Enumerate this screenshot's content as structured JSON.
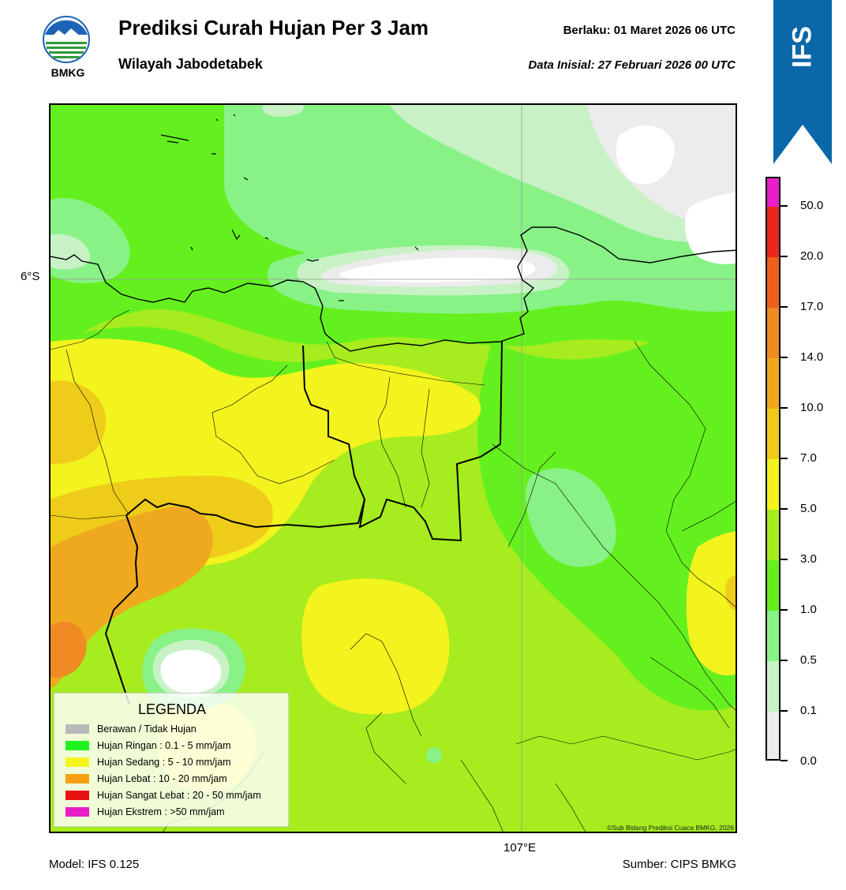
{
  "header": {
    "title": "Prediksi Curah Hujan Per 3 Jam",
    "subtitle": "Wilayah Jabodetabek",
    "valid": "Berlaku:  01 Maret 2026 06 UTC",
    "initial": "Data Inisial:  27 Februari 2026 00 UTC",
    "logo_text": "BMKG"
  },
  "badge": {
    "text": "IFS",
    "color": "#0a67a8"
  },
  "map": {
    "lat_label": "6°S",
    "lon_label": "107°E",
    "copyright": "©Sub Bidang Prediksi Cuaca BMKG, 2026"
  },
  "legend": {
    "title": "LEGENDA",
    "items": [
      {
        "label": "Berawan / Tidak Hujan",
        "color": "#b8b8b8"
      },
      {
        "label": "Hujan Ringan : 0.1 - 5 mm/jam",
        "color": "#1ef31e"
      },
      {
        "label": "Hujan Sedang : 5 - 10 mm/jam",
        "color": "#f4f41e"
      },
      {
        "label": "Hujan Lebat : 10 - 20 mm/jam",
        "color": "#f7a010"
      },
      {
        "label": "Hujan Sangat Lebat : 20 - 50 mm/jam",
        "color": "#e81010"
      },
      {
        "label": "Hujan Ekstrem : >50 mm/jam",
        "color": "#e81ec8"
      }
    ]
  },
  "colorbar": {
    "labels": [
      "50.0",
      "20.0",
      "17.0",
      "14.0",
      "10.0",
      "7.0",
      "5.0",
      "3.0",
      "1.0",
      "0.5",
      "0.1",
      "0.0"
    ],
    "colors": [
      "#e81ec8",
      "#e8281a",
      "#ee5f1c",
      "#ef8b22",
      "#efa91f",
      "#efcc19",
      "#f3f31e",
      "#a6ec1e",
      "#64f01e",
      "#88f286",
      "#c8f2c6",
      "#ececec"
    ]
  },
  "footer": {
    "model": "Model: IFS 0.125",
    "source": "Sumber: CIPS BMKG"
  }
}
